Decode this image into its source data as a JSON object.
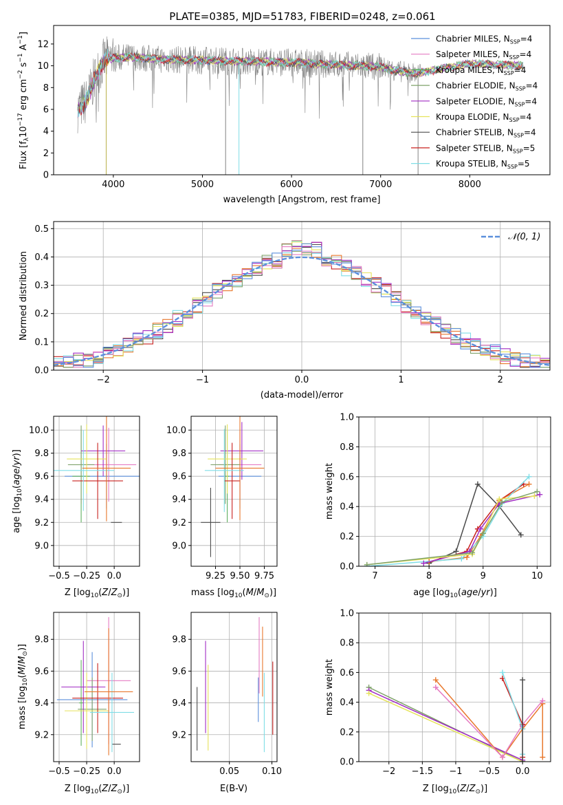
{
  "figure_title": "PLATE=0385, MJD=51783, FIBERID=0248, z=0.061",
  "colors": {
    "Chabrier MILES": "#5b8fdc",
    "Salpeter MILES": "#e57bc2",
    "Kroupa MILES": "#5fb05f",
    "Chabrier ELODIE": "#7fa26a",
    "Salpeter ELODIE": "#a12bc4",
    "Kroupa ELODIE": "#e6e35a",
    "Chabrier STELIB": "#4a4a4a",
    "Salpeter STELIB": "#c8201e",
    "Kroupa STELIB": "#7fdde6",
    "data": "#808080",
    "orange": "#e8772b",
    "normal": "#5b8fdc"
  },
  "chart_data": [
    {
      "id": "spectrum",
      "type": "line",
      "title": "PLATE=0385, MJD=51783, FIBERID=0248, z=0.061",
      "xlabel": "wavelength [Angstrom, rest frame]",
      "ylabel": "Flux [f_λ 10^-17 erg cm^-2 s^-1 A^-1]",
      "xlim": [
        3330,
        8900
      ],
      "ylim": [
        0,
        13.7
      ],
      "xticks": [
        4000,
        5000,
        6000,
        7000,
        8000
      ],
      "yticks": [
        0,
        2,
        4,
        6,
        8,
        10,
        12
      ],
      "legend_position": "top-right",
      "legend": [
        {
          "name": "Chabrier MILES",
          "nssp": "4"
        },
        {
          "name": "Salpeter MILES",
          "nssp": "4"
        },
        {
          "name": "Kroupa MILES",
          "nssp": "4"
        },
        {
          "name": "Chabrier ELODIE",
          "nssp": "4"
        },
        {
          "name": "Salpeter ELODIE",
          "nssp": "4"
        },
        {
          "name": "Kroupa ELODIE",
          "nssp": "4"
        },
        {
          "name": "Chabrier STELIB",
          "nssp": "4"
        },
        {
          "name": "Salpeter STELIB",
          "nssp": "5"
        },
        {
          "name": "Kroupa STELIB",
          "nssp": "5"
        }
      ],
      "continuum": {
        "x": [
          3600,
          3700,
          3800,
          3900,
          4000,
          4200,
          4500,
          5000,
          5500,
          6000,
          6500,
          7000,
          7200,
          7400,
          7600,
          7800,
          8000,
          8300,
          8600
        ],
        "y": [
          6.0,
          6.8,
          9.0,
          10.5,
          10.7,
          10.8,
          10.6,
          10.5,
          10.4,
          10.3,
          10.1,
          9.9,
          9.5,
          9.3,
          9.6,
          9.9,
          10.2,
          10.1,
          10.0
        ]
      },
      "spikes_down": [
        {
          "x": 3920,
          "y": 0
        },
        {
          "x": 5260,
          "y": 0
        },
        {
          "x": 5410,
          "y": 0
        },
        {
          "x": 6800,
          "y": 0
        },
        {
          "x": 7420,
          "y": 0
        }
      ]
    },
    {
      "id": "residuals",
      "type": "line",
      "xlabel": "(data-model)/error",
      "ylabel": "Normed distribution",
      "xlim": [
        -2.5,
        2.5
      ],
      "ylim": [
        0,
        0.525
      ],
      "xticks": [
        -2,
        -1,
        0,
        1,
        2
      ],
      "yticks": [
        0.0,
        0.1,
        0.2,
        0.3,
        0.4,
        0.5
      ],
      "legend": [
        "N(0,1)"
      ],
      "legend_position": "top-right",
      "bin_width": 0.1,
      "bin_start": -2.5
    },
    {
      "id": "age_vs_Z",
      "type": "scatter",
      "xlabel": "Z [log10(Z/Z⊙)]",
      "ylabel": "age [log10(age/yr)]",
      "xlim": [
        -0.55,
        0.23
      ],
      "ylim": [
        8.82,
        10.12
      ],
      "xticks": [
        -0.5,
        -0.25,
        0.0
      ],
      "yticks": [
        9.0,
        9.2,
        9.4,
        9.6,
        9.8,
        10.0
      ],
      "points": [
        {
          "series": "Chabrier MILES",
          "x": -0.07,
          "xerr": 0.38,
          "y": 9.6,
          "yerr": 0.28
        },
        {
          "series": "Salpeter MILES",
          "x": -0.05,
          "xerr": 0.25,
          "y": 9.7,
          "yerr": 0.32
        },
        {
          "series": "Kroupa MILES",
          "x": -0.3,
          "xerr": 0.08,
          "y": 9.6,
          "yerr": 0.4
        },
        {
          "series": "Chabrier ELODIE",
          "x": -0.3,
          "xerr": 0.12,
          "y": 9.7,
          "yerr": 0.34
        },
        {
          "series": "Salpeter ELODIE",
          "x": -0.1,
          "xerr": 0.2,
          "y": 9.82,
          "yerr": 0.22
        },
        {
          "series": "Kroupa ELODIE",
          "x": -0.25,
          "xerr": 0.18,
          "y": 9.75,
          "yerr": 0.3
        },
        {
          "series": "Chabrier STELIB",
          "x": 0.02,
          "xerr": 0.05,
          "y": 9.2,
          "yerr": 0.0
        },
        {
          "series": "Salpeter STELIB",
          "x": -0.15,
          "xerr": 0.23,
          "y": 9.56,
          "yerr": 0.33
        },
        {
          "series": "Kroupa STELIB",
          "x": -0.28,
          "xerr": 0.28,
          "y": 9.65,
          "yerr": 0.35
        },
        {
          "series": "orange",
          "x": -0.07,
          "xerr": 0.22,
          "y": 9.67,
          "yerr": 0.46
        }
      ]
    },
    {
      "id": "age_vs_mass",
      "type": "scatter",
      "xlabel": "mass [log10(M/M⊙)]",
      "ylabel": "",
      "xlim": [
        9.0,
        9.88
      ],
      "ylim": [
        8.82,
        10.12
      ],
      "xticks": [
        9.25,
        9.5,
        9.75
      ],
      "yticks": [
        9.0,
        9.2,
        9.4,
        9.6,
        9.8,
        10.0
      ],
      "points": [
        {
          "series": "Chabrier MILES",
          "x": 9.5,
          "xerr": 0.22,
          "y": 9.6,
          "yerr": 0.28
        },
        {
          "series": "Salpeter MILES",
          "x": 9.5,
          "xerr": 0.22,
          "y": 9.7,
          "yerr": 0.3
        },
        {
          "series": "Kroupa MILES",
          "x": 9.37,
          "xerr": 0.02,
          "y": 9.6,
          "yerr": 0.4
        },
        {
          "series": "Chabrier ELODIE",
          "x": 9.35,
          "xerr": 0.15,
          "y": 9.7,
          "yerr": 0.34
        },
        {
          "series": "Salpeter ELODIE",
          "x": 9.52,
          "xerr": 0.22,
          "y": 9.82,
          "yerr": 0.25
        },
        {
          "series": "Kroupa ELODIE",
          "x": 9.37,
          "xerr": 0.2,
          "y": 9.75,
          "yerr": 0.3
        },
        {
          "series": "Chabrier STELIB",
          "x": 9.2,
          "xerr": 0.1,
          "y": 9.2,
          "yerr": 0.3
        },
        {
          "series": "Salpeter STELIB",
          "x": 9.42,
          "xerr": 0.08,
          "y": 9.56,
          "yerr": 0.33
        },
        {
          "series": "Kroupa STELIB",
          "x": 9.34,
          "xerr": 0.2,
          "y": 9.65,
          "yerr": 0.36
        },
        {
          "series": "orange",
          "x": 9.5,
          "xerr": 0.25,
          "y": 9.67,
          "yerr": 0.45
        }
      ]
    },
    {
      "id": "massweight_vs_age",
      "type": "line",
      "xlabel": "age [log10(age/yr)]",
      "ylabel": "mass weight",
      "xlim": [
        6.7,
        10.25
      ],
      "ylim": [
        0,
        1.0
      ],
      "xticks": [
        7,
        8,
        9,
        10
      ],
      "yticks": [
        0.0,
        0.2,
        0.4,
        0.6,
        0.8,
        1.0
      ],
      "series": [
        {
          "name": "Chabrier STELIB",
          "x": [
            8.0,
            8.5,
            8.9,
            9.3,
            9.7
          ],
          "y": [
            0.02,
            0.1,
            0.55,
            0.4,
            0.21
          ]
        },
        {
          "name": "Salpeter STELIB",
          "x": [
            8.0,
            8.7,
            8.9,
            9.3,
            9.75
          ],
          "y": [
            0.03,
            0.1,
            0.25,
            0.44,
            0.55
          ]
        },
        {
          "name": "orange",
          "x": [
            8.0,
            8.7,
            8.95,
            9.3,
            9.85
          ],
          "y": [
            0.03,
            0.06,
            0.2,
            0.44,
            0.55
          ]
        },
        {
          "name": "Kroupa STELIB",
          "x": [
            6.85,
            8.6,
            9.0,
            9.35,
            9.85
          ],
          "y": [
            0.0,
            0.05,
            0.2,
            0.42,
            0.6
          ]
        },
        {
          "name": "Salpeter ELODIE",
          "x": [
            7.9,
            8.75,
            8.95,
            9.3,
            10.05
          ],
          "y": [
            0.02,
            0.1,
            0.25,
            0.42,
            0.48
          ]
        },
        {
          "name": "Kroupa ELODIE",
          "x": [
            6.85,
            8.8,
            9.0,
            9.3,
            9.95
          ],
          "y": [
            0.01,
            0.08,
            0.22,
            0.45,
            0.47
          ]
        },
        {
          "name": "Chabrier ELODIE",
          "x": [
            6.85,
            8.8,
            9.0,
            9.35,
            10.0
          ],
          "y": [
            0.01,
            0.09,
            0.22,
            0.43,
            0.5
          ]
        }
      ]
    },
    {
      "id": "mass_vs_Z",
      "type": "scatter",
      "xlabel": "Z [log10(Z/Z⊙)]",
      "ylabel": "mass [log10(M/M⊙)]",
      "xlim": [
        -0.55,
        0.23
      ],
      "ylim": [
        9.03,
        9.97
      ],
      "xticks": [
        -0.5,
        -0.25,
        0.0
      ],
      "yticks": [
        9.2,
        9.4,
        9.6,
        9.8
      ],
      "points": [
        {
          "series": "Chabrier MILES",
          "x": -0.2,
          "xerr": 0.32,
          "y": 9.42,
          "yerr": 0.3
        },
        {
          "series": "Salpeter MILES",
          "x": -0.05,
          "xerr": 0.2,
          "y": 9.54,
          "yerr": 0.4
        },
        {
          "series": "Kroupa MILES",
          "x": -0.3,
          "xerr": 0.02,
          "y": 9.4,
          "yerr": 0.27
        },
        {
          "series": "Chabrier ELODIE",
          "x": -0.2,
          "xerr": 0.13,
          "y": 9.36,
          "yerr": 0.2
        },
        {
          "series": "Salpeter ELODIE",
          "x": -0.28,
          "xerr": 0.2,
          "y": 9.5,
          "yerr": 0.29
        },
        {
          "series": "Kroupa ELODIE",
          "x": -0.25,
          "xerr": 0.2,
          "y": 9.35,
          "yerr": 0.24
        },
        {
          "series": "Chabrier STELIB",
          "x": 0.02,
          "xerr": 0.04,
          "y": 9.14,
          "yerr": 0.0
        },
        {
          "series": "Salpeter STELIB",
          "x": -0.15,
          "xerr": 0.23,
          "y": 9.43,
          "yerr": 0.22
        },
        {
          "series": "Kroupa STELIB",
          "x": -0.02,
          "xerr": 0.2,
          "y": 9.34,
          "yerr": 0.25
        },
        {
          "series": "orange",
          "x": -0.05,
          "xerr": 0.22,
          "y": 9.47,
          "yerr": 0.4
        }
      ]
    },
    {
      "id": "mass_vs_EBV",
      "type": "scatter",
      "xlabel": "E(B-V)",
      "ylabel": "",
      "xlim": [
        0.005,
        0.106
      ],
      "ylim": [
        9.03,
        9.97
      ],
      "xticks": [
        0.05,
        0.1
      ],
      "yticks": [
        9.2,
        9.4,
        9.6,
        9.8
      ],
      "points": [
        {
          "series": "Chabrier STELIB",
          "x": 0.012,
          "y": 9.3,
          "yerr": 0.2
        },
        {
          "series": "Salpeter ELODIE",
          "x": 0.022,
          "y": 9.5,
          "yerr": 0.29
        },
        {
          "series": "Kroupa ELODIE",
          "x": 0.025,
          "y": 9.37,
          "yerr": 0.27
        },
        {
          "series": "Chabrier MILES",
          "x": 0.084,
          "y": 9.42,
          "yerr": 0.14
        },
        {
          "series": "Salpeter MILES",
          "x": 0.085,
          "y": 9.7,
          "yerr": 0.24
        },
        {
          "series": "orange",
          "x": 0.089,
          "y": 9.66,
          "yerr": 0.22
        },
        {
          "series": "Kroupa STELIB",
          "x": 0.091,
          "y": 9.34,
          "yerr": 0.25
        },
        {
          "series": "Salpeter STELIB",
          "x": 0.101,
          "y": 9.43,
          "yerr": 0.23
        }
      ]
    },
    {
      "id": "massweight_vs_Z",
      "type": "line",
      "xlabel": "Z [log10(Z/Z⊙)]",
      "ylabel": "mass weight",
      "xlim": [
        -2.45,
        0.42
      ],
      "ylim": [
        0,
        1.0
      ],
      "xticks": [
        -2.0,
        -1.5,
        -1.0,
        -0.5,
        0.0
      ],
      "yticks": [
        0.0,
        0.2,
        0.4,
        0.6,
        0.8,
        1.0
      ],
      "series": [
        {
          "name": "Chabrier ELODIE",
          "x": [
            -2.3,
            0.0,
            0.0
          ],
          "y": [
            0.5,
            0.0,
            0.24
          ]
        },
        {
          "name": "Salpeter ELODIE",
          "x": [
            -2.3,
            0.0,
            0.0
          ],
          "y": [
            0.48,
            0.01,
            0.24
          ]
        },
        {
          "name": "Kroupa ELODIE",
          "x": [
            -2.3,
            0.0,
            0.0
          ],
          "y": [
            0.46,
            0.0,
            0.25
          ]
        },
        {
          "name": "orange",
          "x": [
            -1.3,
            -0.3,
            0.0,
            0.3,
            0.3
          ],
          "y": [
            0.55,
            0.03,
            0.22,
            0.39,
            0.03
          ]
        },
        {
          "name": "Salpeter MILES",
          "x": [
            -1.3,
            -0.3,
            0.0,
            0.3
          ],
          "y": [
            0.5,
            0.03,
            0.25,
            0.41
          ]
        },
        {
          "name": "Salpeter STELIB",
          "x": [
            -0.3,
            0.0,
            0.0
          ],
          "y": [
            0.56,
            0.25,
            0.03
          ]
        },
        {
          "name": "Kroupa STELIB",
          "x": [
            -0.3,
            0.0,
            0.0
          ],
          "y": [
            0.6,
            0.22,
            0.05
          ]
        },
        {
          "name": "Chabrier STELIB",
          "x": [
            0.0,
            0.0
          ],
          "y": [
            0.55,
            0.0
          ]
        }
      ]
    }
  ]
}
